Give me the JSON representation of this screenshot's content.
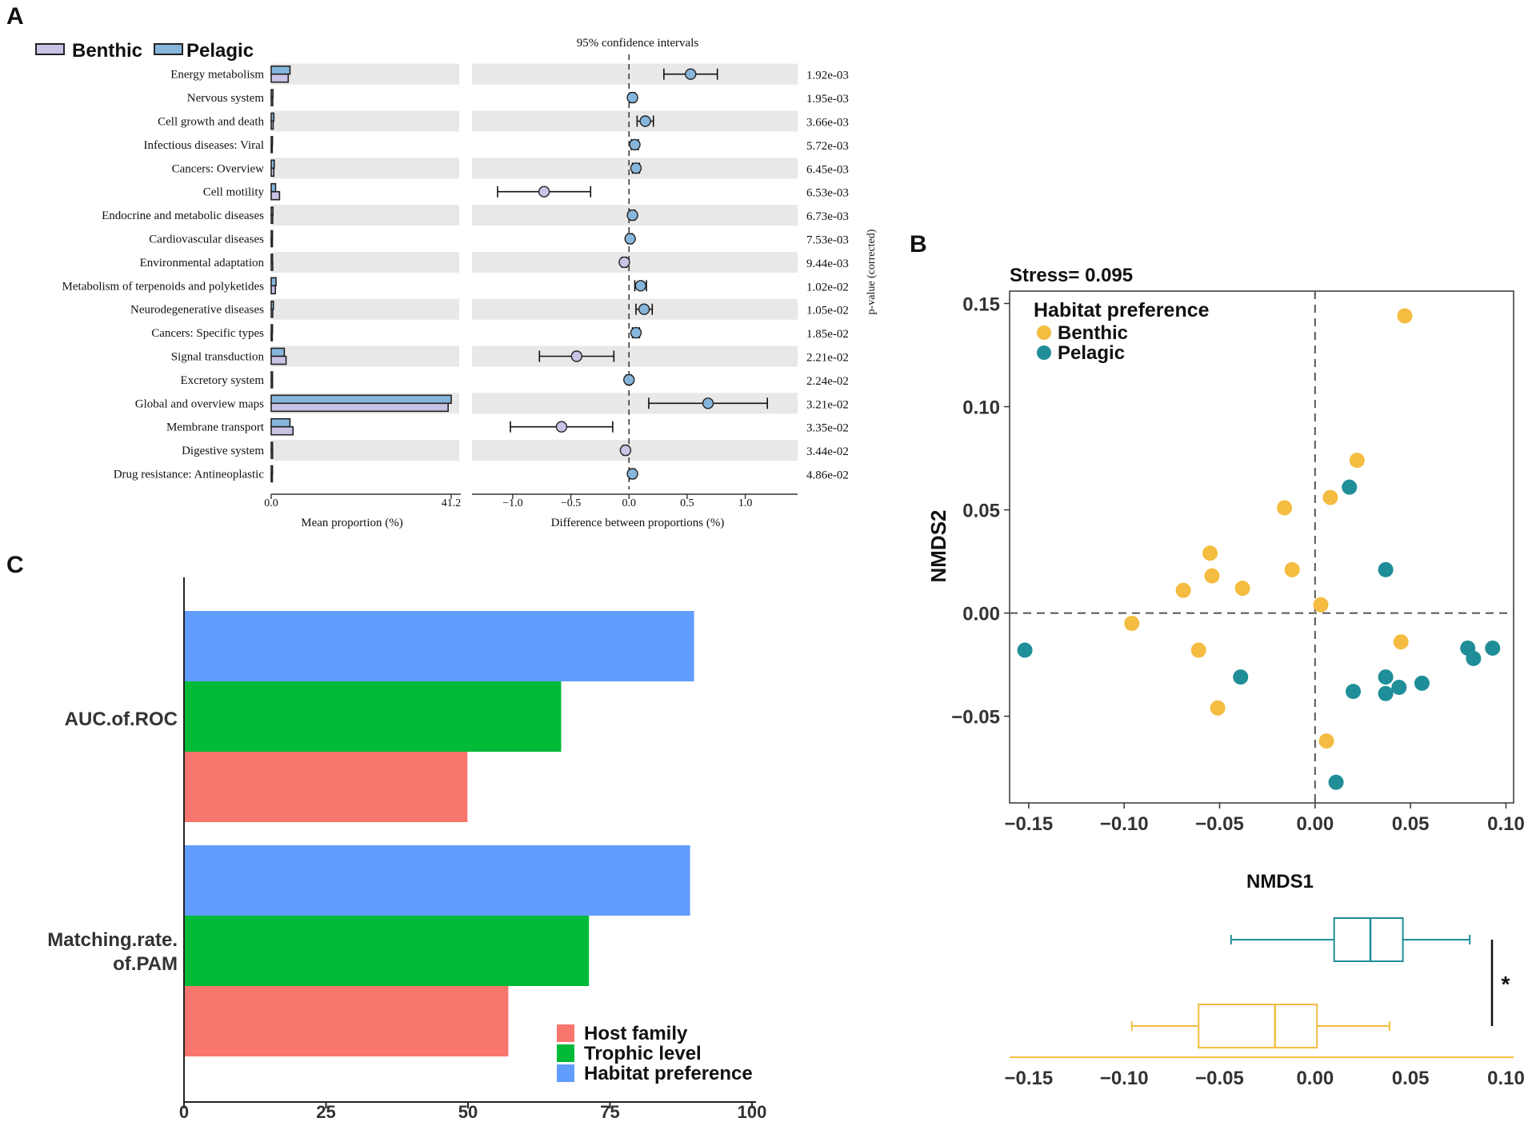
{
  "panel_labels": [
    "A",
    "B",
    "C"
  ],
  "colors": {
    "benthic_a": "#c9c3e6",
    "pelagic_a": "#86b6dc",
    "benthic_b": "#f4bc40",
    "pelagic_b": "#1f8e98",
    "host_family": "#f8766d",
    "trophic_level": "#00ba38",
    "habitat_preference": "#619cff",
    "stripe": "#e8e8e8"
  },
  "chart_data": [
    {
      "id": "A",
      "type": "bar",
      "legend": [
        "Benthic",
        "Pelagic"
      ],
      "ci_title": "95% confidence intervals",
      "xlabel_left": "Mean proportion (%)",
      "xlabel_right": "Difference between proportions (%)",
      "ylabel_right": "p-value (corrected)",
      "left_ticks": [
        "0.0",
        "41.2"
      ],
      "left_max": 41.2,
      "right_ticks": [
        "−1.0",
        "−0.5",
        "0.0",
        "0.5",
        "1.0"
      ],
      "right_tick_values": [
        -1.0,
        -0.5,
        0.0,
        0.5,
        1.0
      ],
      "right_range": [
        -1.35,
        1.45
      ],
      "categories": [
        "Energy metabolism",
        "Nervous system",
        "Cell growth and death",
        "Infectious diseases: Viral",
        "Cancers: Overview",
        "Cell motility",
        "Endocrine and metabolic diseases",
        "Cardiovascular diseases",
        "Environmental adaptation",
        "Metabolism of terpenoids and polyketides",
        "Neurodegenerative diseases",
        "Cancers: Specific types",
        "Signal transduction",
        "Excretory system",
        "Global and overview maps",
        "Membrane transport",
        "Digestive system",
        "Drug resistance: Antineoplastic"
      ],
      "series": [
        {
          "name": "Pelagic",
          "values": [
            4.3,
            0.4,
            0.6,
            0.3,
            0.7,
            1.0,
            0.4,
            0.3,
            0.3,
            1.1,
            0.5,
            0.3,
            3.0,
            0.3,
            41.2,
            4.3,
            0.3,
            0.3
          ]
        },
        {
          "name": "Benthic",
          "values": [
            3.9,
            0.35,
            0.45,
            0.25,
            0.6,
            1.9,
            0.35,
            0.28,
            0.35,
            0.95,
            0.35,
            0.25,
            3.4,
            0.3,
            40.5,
            5.0,
            0.32,
            0.26
          ]
        }
      ],
      "difference": [
        0.53,
        0.03,
        0.14,
        0.05,
        0.06,
        -0.73,
        0.03,
        0.01,
        -0.04,
        0.1,
        0.13,
        0.06,
        -0.45,
        0.0,
        0.68,
        -0.58,
        -0.03,
        0.03
      ],
      "ci_low": [
        0.3,
        0.01,
        0.07,
        0.02,
        0.03,
        -1.13,
        0.01,
        -0.01,
        -0.06,
        0.05,
        0.06,
        0.03,
        -0.77,
        -0.02,
        0.17,
        -1.02,
        -0.05,
        0.01
      ],
      "ci_high": [
        0.76,
        0.05,
        0.21,
        0.08,
        0.09,
        -0.33,
        0.05,
        0.03,
        -0.02,
        0.15,
        0.2,
        0.09,
        -0.13,
        0.02,
        1.19,
        -0.14,
        -0.01,
        0.05
      ],
      "p_values": [
        "1.92e-03",
        "1.95e-03",
        "3.66e-03",
        "5.72e-03",
        "6.45e-03",
        "6.53e-03",
        "6.73e-03",
        "7.53e-03",
        "9.44e-03",
        "1.02e-02",
        "1.05e-02",
        "1.85e-02",
        "2.21e-02",
        "2.24e-02",
        "3.21e-02",
        "3.35e-02",
        "3.44e-02",
        "4.86e-02"
      ]
    },
    {
      "id": "B",
      "type": "scatter",
      "title": "Stress= 0.095",
      "legend_title": "Habitat preference",
      "xlabel": "NMDS1",
      "ylabel": "NMDS2",
      "xlim": [
        -0.16,
        0.104
      ],
      "ylim": [
        -0.092,
        0.156
      ],
      "x_ticks": [
        -0.15,
        -0.1,
        -0.05,
        0.0,
        0.05,
        0.1
      ],
      "x_tick_labels": [
        "−0.15",
        "−0.10",
        "−0.05",
        "0.00",
        "0.05",
        "0.10"
      ],
      "y_ticks": [
        0.15,
        0.1,
        0.05,
        0.0,
        -0.05
      ],
      "y_tick_labels": [
        "0.15",
        "0.10",
        "0.05",
        "0.00",
        "−0.05"
      ],
      "series": [
        {
          "name": "Benthic",
          "x": [
            0.047,
            0.022,
            0.008,
            -0.016,
            -0.055,
            -0.012,
            -0.054,
            -0.038,
            -0.069,
            0.003,
            -0.096,
            -0.061,
            0.045,
            -0.051,
            0.006
          ],
          "y": [
            0.144,
            0.074,
            0.056,
            0.051,
            0.029,
            0.021,
            0.018,
            0.012,
            0.011,
            0.004,
            -0.005,
            -0.018,
            -0.014,
            -0.046,
            -0.062
          ]
        },
        {
          "name": "Pelagic",
          "x": [
            0.018,
            0.037,
            -0.152,
            -0.039,
            0.02,
            0.037,
            0.044,
            0.056,
            0.037,
            0.08,
            0.083,
            0.093,
            0.011
          ],
          "y": [
            0.061,
            0.021,
            -0.018,
            -0.031,
            -0.038,
            -0.031,
            -0.036,
            -0.034,
            -0.039,
            -0.017,
            -0.022,
            -0.017,
            -0.082
          ]
        }
      ],
      "box_xlim": [
        -0.16,
        0.104
      ],
      "box_x_ticks": [
        -0.15,
        -0.1,
        -0.05,
        0.0,
        0.05,
        0.1
      ],
      "box_x_tick_labels": [
        "−0.15",
        "−0.10",
        "−0.05",
        "0.00",
        "0.05",
        "0.10"
      ],
      "boxplot": [
        {
          "name": "Pelagic",
          "min": -0.044,
          "q1": 0.01,
          "median": 0.029,
          "q3": 0.046,
          "max": 0.081
        },
        {
          "name": "Benthic",
          "min": -0.096,
          "q1": -0.061,
          "median": -0.021,
          "q3": 0.001,
          "max": 0.039
        }
      ],
      "significance": "*"
    },
    {
      "id": "C",
      "type": "bar",
      "orientation": "horizontal",
      "categories": [
        "AUC.of.ROC",
        "Matching.rate.\nof.PAM"
      ],
      "series": [
        {
          "name": "Habitat preference",
          "values": [
            89.8,
            89.1
          ]
        },
        {
          "name": "Trophic level",
          "values": [
            66.4,
            71.3
          ]
        },
        {
          "name": "Host family",
          "values": [
            49.9,
            57.1
          ]
        }
      ],
      "legend": [
        "Host family",
        "Trophic level",
        "Habitat preference"
      ],
      "xlim": [
        0,
        100
      ],
      "x_ticks": [
        0,
        25,
        50,
        75,
        100
      ]
    }
  ]
}
